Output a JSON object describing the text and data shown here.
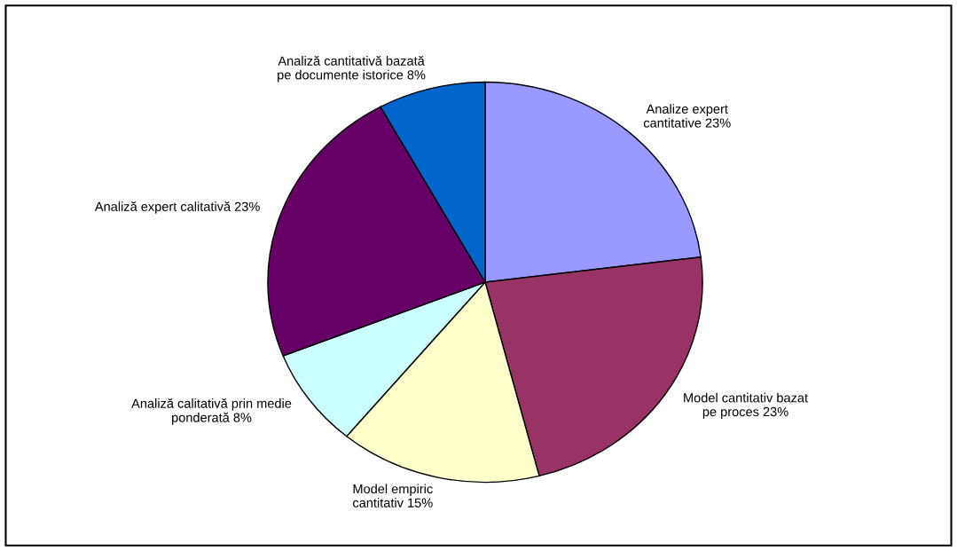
{
  "chart_data": {
    "type": "pie",
    "categories": [
      "Analize expert\ncantitative",
      "Model cantitativ bazat\npe proces",
      "Model empiric\ncantitativ",
      "Analiză calitativă prin medie\nponderată",
      "Analiză expert calitativă",
      "Analiză cantitativă bazată\npe documente istorice"
    ],
    "values": [
      23,
      23,
      15,
      8,
      23,
      8
    ],
    "value_labels": [
      "23%",
      "23%",
      "15%",
      "8%",
      "23%",
      "8%"
    ],
    "colors": [
      "#9999ff",
      "#993366",
      "#ffffcc",
      "#ccffff",
      "#660066",
      "#0066cc"
    ],
    "legend": false
  }
}
